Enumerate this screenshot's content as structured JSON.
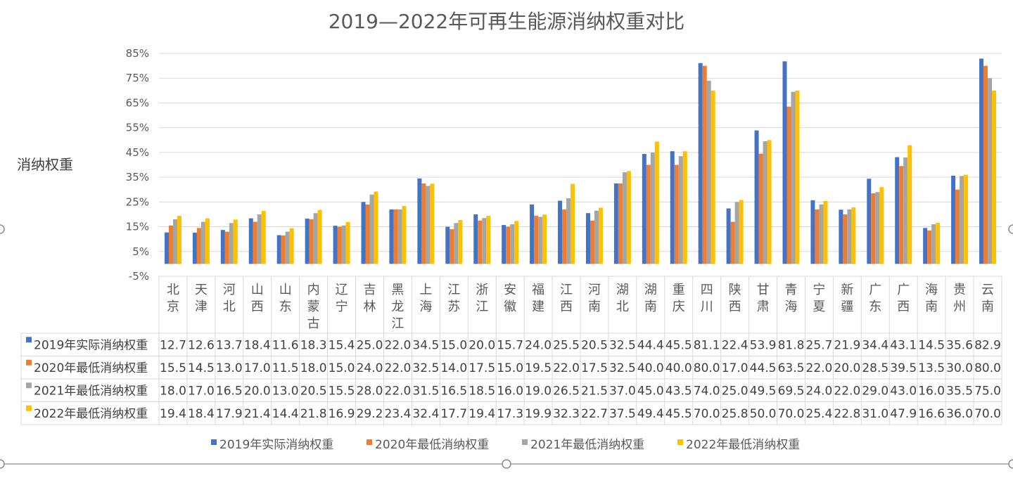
{
  "chart_data": {
    "type": "bar",
    "title": "2019—2022年可再生能源消纳权重对比",
    "ylabel": "消纳权重",
    "yticks": [
      "85%",
      "75%",
      "65%",
      "55%",
      "45%",
      "35%",
      "25%",
      "15%",
      "5%",
      "-5%"
    ],
    "ylim": [
      -5,
      85
    ],
    "grid": true,
    "legend_position": "bottom",
    "categories": [
      "北京",
      "天津",
      "河北",
      "山西",
      "山东",
      "内蒙古",
      "辽宁",
      "吉林",
      "黑龙江",
      "上海",
      "江苏",
      "浙江",
      "安徽",
      "福建",
      "江西",
      "河南",
      "湖北",
      "湖南",
      "重庆",
      "四川",
      "陕西",
      "甘肃",
      "青海",
      "宁夏",
      "新疆",
      "广东",
      "广西",
      "海南",
      "贵州",
      "云南"
    ],
    "series": [
      {
        "name": "2019年实际消纳权重",
        "color": "#4472C4",
        "values": [
          12.7,
          12.6,
          13.7,
          18.4,
          11.6,
          18.3,
          15.4,
          25.0,
          22.0,
          34.5,
          15.0,
          20.0,
          15.7,
          24.0,
          25.5,
          20.5,
          32.5,
          44.4,
          45.5,
          81.1,
          22.4,
          53.9,
          81.8,
          25.7,
          21.9,
          34.4,
          43.1,
          14.5,
          35.6,
          82.9
        ]
      },
      {
        "name": "2020年最低消纳权重",
        "color": "#ED7D31",
        "values": [
          15.5,
          14.5,
          13.0,
          17.0,
          11.5,
          18.0,
          15.0,
          24.0,
          22.0,
          32.5,
          14.0,
          17.5,
          15.0,
          19.5,
          22.0,
          17.5,
          32.5,
          40.0,
          40.0,
          80.0,
          17.0,
          44.5,
          63.5,
          22.0,
          20.0,
          28.5,
          39.5,
          13.5,
          30.0,
          80.0
        ]
      },
      {
        "name": "2021年最低消纳权重",
        "color": "#A5A5A5",
        "values": [
          18.0,
          17.0,
          16.5,
          20.0,
          13.0,
          20.5,
          15.5,
          28.0,
          22.0,
          31.5,
          16.5,
          18.5,
          16.0,
          19.0,
          26.5,
          21.5,
          37.0,
          45.0,
          43.5,
          74.0,
          25.0,
          49.5,
          69.5,
          24.0,
          22.0,
          29.0,
          43.0,
          16.0,
          35.5,
          75.0
        ]
      },
      {
        "name": "2022年最低消纳权重",
        "color": "#FFC000",
        "values": [
          19.4,
          18.4,
          17.9,
          21.4,
          14.4,
          21.8,
          16.9,
          29.2,
          23.4,
          32.4,
          17.7,
          19.4,
          17.3,
          19.9,
          32.3,
          22.7,
          37.5,
          49.4,
          45.5,
          70.0,
          25.8,
          50.0,
          70.0,
          25.4,
          22.8,
          31.0,
          47.9,
          16.6,
          36.0,
          70.0
        ]
      }
    ],
    "table_cells": [
      [
        "12.7",
        "12.6",
        "13.7",
        "18.4",
        "11.6",
        "18.3",
        "15.4",
        "25.0",
        "22.0",
        "34.5",
        "15.0",
        "20.0",
        "15.7",
        "24.0",
        "25.5",
        "20.5",
        "32.5",
        "44.4",
        "45.5",
        "81.1",
        "22.4",
        "53.9",
        "81.8",
        "25.7",
        "21.9",
        "34.4",
        "43.1",
        "14.5",
        "35.6",
        "82.9"
      ],
      [
        "15.5",
        "14.5",
        "13.0",
        "17.0",
        "11.5",
        "18.0",
        "15.0",
        "24.0",
        "22.0",
        "32.5",
        "14.0",
        "17.5",
        "15.0",
        "19.5",
        "22.0",
        "17.5",
        "32.5",
        "40.0",
        "40.0",
        "80.0",
        "17.0",
        "44.5",
        "63.5",
        "22.0",
        "20.0",
        "28.5",
        "39.5",
        "13.5",
        "30.0",
        "80.0"
      ],
      [
        "18.0",
        "17.0",
        "16.5",
        "20.0",
        "13.0",
        "20.5",
        "15.5",
        "28.0",
        "22.0",
        "31.5",
        "16.5",
        "18.5",
        "16.0",
        "19.0",
        "26.5",
        "21.5",
        "37.0",
        "45.0",
        "43.5",
        "74.0",
        "25.0",
        "49.5",
        "69.5",
        "24.0",
        "22.0",
        "29.0",
        "43.0",
        "16.0",
        "35.5",
        "75.0"
      ],
      [
        "19.4",
        "18.4",
        "17.9",
        "21.4",
        "14.4",
        "21.8",
        "16.9",
        "29.2",
        "23.4",
        "32.4",
        "17.7",
        "19.4",
        "17.3",
        "19.9",
        "32.3",
        "22.7",
        "37.5",
        "49.4",
        "45.5",
        "70.0",
        "25.8",
        "50.0",
        "70.0",
        "25.4",
        "22.8",
        "31.0",
        "47.9",
        "16.6",
        "36.0",
        "70.0"
      ]
    ]
  }
}
